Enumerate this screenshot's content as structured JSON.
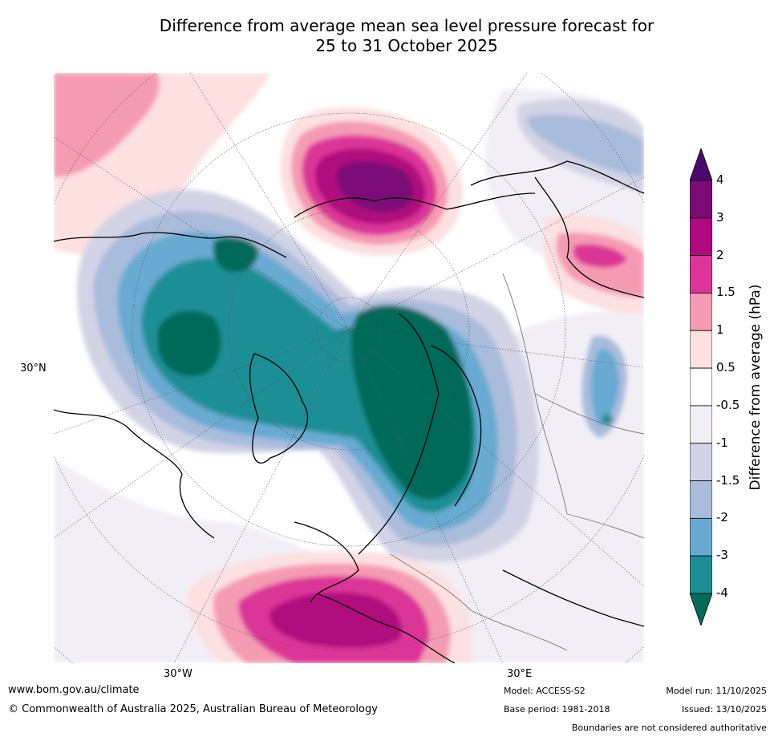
{
  "title": {
    "line1": "Difference from average mean sea level pressure forecast for",
    "line2": "25 to 31 October 2025"
  },
  "map": {
    "axis_labels": {
      "lat_30n": "30°N",
      "lon_30w": "30°W",
      "lon_30e": "30°E"
    },
    "features": [
      "arctic-anomaly-negative",
      "scandinavia-anomaly-negative",
      "siberia-anomaly-positive",
      "mediterranean-anomaly-positive"
    ]
  },
  "colorbar": {
    "title": "Difference from average (hPa)",
    "ticks": [
      "4",
      "3",
      "2",
      "1.5",
      "1",
      "0.5",
      "-0.5",
      "-1",
      "-1.5",
      "-2",
      "-3",
      "-4"
    ],
    "colors": [
      "#4b0a6b",
      "#7b0a78",
      "#b0087e",
      "#dc3498",
      "#f59bb3",
      "#fde0e0",
      "#ffffff",
      "#f2eef5",
      "#d3d3e6",
      "#a9bcdc",
      "#68aad2",
      "#1c8f96",
      "#036b5a"
    ]
  },
  "footer": {
    "website": "www.bom.gov.au/climate",
    "copyright": "© Commonwealth of Australia 2025, Australian Bureau of Meteorology",
    "model": "Model: ACCESS-S2",
    "base_period": "Base period: 1981-2018",
    "model_run": "Model run: 11/10/2025",
    "issued": "Issued: 13/10/2025",
    "disclaimer": "Boundaries are not considered authoritative"
  }
}
